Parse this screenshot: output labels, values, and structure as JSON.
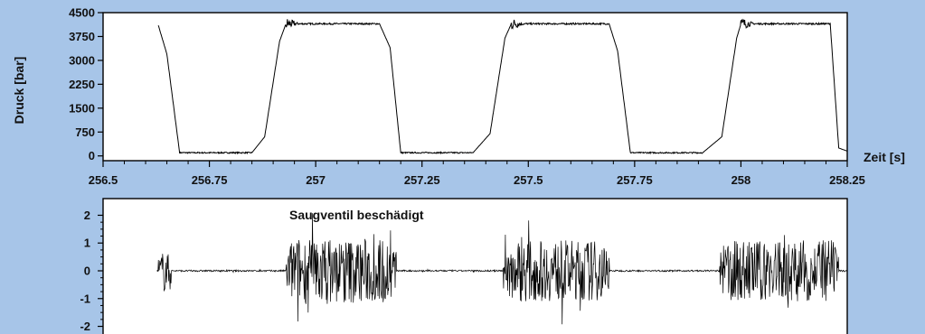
{
  "colors": {
    "background": "#a7c5e8",
    "plot_area": "#ffffff",
    "trace": "#000000"
  },
  "chart_data": [
    {
      "type": "line",
      "name": "pressure",
      "ylabel": "Druck [bar]",
      "xlabel": "Zeit [s]",
      "xlim": [
        256.5,
        258.25
      ],
      "ylim": [
        -150,
        4500
      ],
      "xticks": [
        "256.5",
        "256.75",
        "257",
        "257.25",
        "257.5",
        "257.75",
        "258",
        "258.25"
      ],
      "yticks": [
        "4500",
        "3750",
        "3000",
        "2250",
        "1500",
        "750",
        "0"
      ],
      "x": [
        256.63,
        256.65,
        256.68,
        256.85,
        256.88,
        256.915,
        256.93,
        257.15,
        257.175,
        257.2,
        257.37,
        257.41,
        257.445,
        257.46,
        257.69,
        257.71,
        257.74,
        257.91,
        257.955,
        257.99,
        258.0,
        258.21,
        258.23,
        258.25
      ],
      "y": [
        4100,
        3200,
        100,
        100,
        600,
        3600,
        4150,
        4150,
        3400,
        100,
        100,
        700,
        3700,
        4150,
        4150,
        3300,
        100,
        100,
        600,
        3700,
        4150,
        4150,
        250,
        150
      ],
      "grid": false
    },
    {
      "type": "line",
      "name": "vibration",
      "annotation": "Saugventil beschädigt",
      "xlim": [
        256.5,
        258.25
      ],
      "ylim": [
        -2.6,
        2.6
      ],
      "yticks": [
        "2",
        "1",
        "0",
        "-1",
        "-2"
      ],
      "burst_windows": [
        [
          256.63,
          256.66,
          0.8
        ],
        [
          256.93,
          257.19,
          1.2
        ],
        [
          257.44,
          257.69,
          1.1
        ],
        [
          257.95,
          258.23,
          1.1
        ]
      ],
      "grid": false
    }
  ]
}
